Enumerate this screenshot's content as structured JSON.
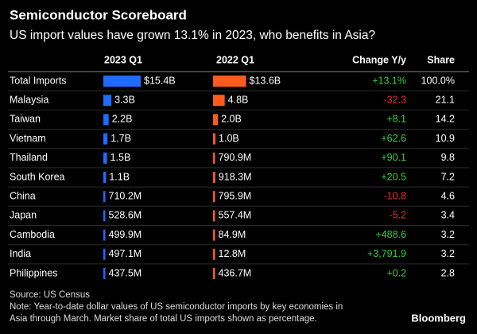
{
  "chart_data": {
    "type": "bar-table",
    "title": "Semiconductor Scoreboard",
    "subtitle": "US import values have grown 13.1% in 2023, who benefits in Asia?",
    "categories": [
      "Total Imports",
      "Malaysia",
      "Taiwan",
      "Vietnam",
      "Thailand",
      "South Korea",
      "China",
      "Japan",
      "Cambodia",
      "India",
      "Philippines"
    ],
    "series": [
      {
        "name": "2023 Q1",
        "color": "#1f6bff",
        "values": [
          15400000000,
          3300000000,
          2200000000,
          1700000000,
          1500000000,
          1100000000,
          710200000,
          528600000,
          499900000,
          497100000,
          437500000
        ],
        "value_labels": [
          "$15.4B",
          "3.3B",
          "2.2B",
          "1.7B",
          "1.5B",
          "1.1B",
          "710.2M",
          "528.6M",
          "499.9M",
          "497.1M",
          "437.5M"
        ]
      },
      {
        "name": "2022 Q1",
        "color": "#ff5b1e",
        "values": [
          13600000000,
          4800000000,
          2000000000,
          1000000000,
          790900000,
          918300000,
          795900000,
          557400000,
          84900000,
          12800000,
          436700000
        ],
        "value_labels": [
          "$13.6B",
          "4.8B",
          "2.0B",
          "1.0B",
          "790.9M",
          "918.3M",
          "795.9M",
          "557.4M",
          "84.9M",
          "12.8M",
          "436.7M"
        ]
      }
    ],
    "change": {
      "name": "Change Y/y",
      "values": [
        13.1,
        -32.3,
        8.1,
        62.6,
        90.1,
        20.5,
        -10.8,
        -5.2,
        488.6,
        3791.9,
        0.2
      ],
      "value_labels": [
        "+13.1%",
        "-32.3",
        "+8.1",
        "+62.6",
        "+90.1",
        "+20.5",
        "-10.8",
        "-5.2",
        "+488.6",
        "+3,791.9",
        "+0.2"
      ],
      "positive_color": "#33d03d",
      "negative_color": "#e8302a"
    },
    "share": {
      "name": "Share",
      "values": [
        100.0,
        21.1,
        14.2,
        10.9,
        9.8,
        7.2,
        4.6,
        3.4,
        3.2,
        3.2,
        2.8
      ],
      "value_labels": [
        "100.0%",
        "21.1",
        "14.2",
        "10.9",
        "9.8",
        "7.2",
        "4.6",
        "3.4",
        "3.2",
        "3.2",
        "2.8"
      ]
    },
    "source": "Source: US Census",
    "note": [
      "Note: Year-to-date dollar values of US semiconductor imports by key economies in",
      "Asia through March. Market share of total US imports shown as percentage."
    ],
    "brand": "Bloomberg"
  }
}
